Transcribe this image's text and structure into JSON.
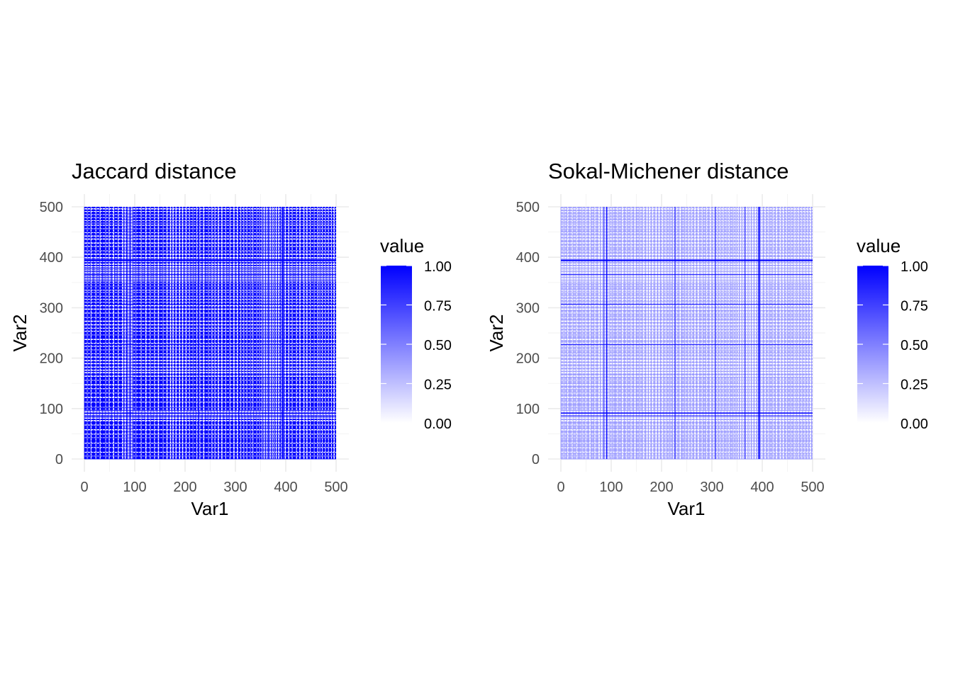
{
  "legend": {
    "title": "value",
    "ticks": [
      1.0,
      0.75,
      0.5,
      0.25,
      0.0
    ],
    "tick_labels": [
      "1.00",
      "0.75",
      "0.50",
      "0.25",
      "0.00"
    ],
    "low_color": "#ffffff",
    "high_color": "#0000ff",
    "range": [
      0,
      1
    ]
  },
  "chart_data": [
    {
      "type": "heatmap",
      "title": "Jaccard distance",
      "xlabel": "Var1",
      "ylabel": "Var2",
      "xlim": [
        0,
        500
      ],
      "ylim": [
        0,
        500
      ],
      "x_ticks": [
        0,
        100,
        200,
        300,
        400,
        500
      ],
      "y_ticks": [
        0,
        100,
        200,
        300,
        400,
        500
      ],
      "x_tick_labels": [
        "0",
        "100",
        "200",
        "300",
        "400",
        "500"
      ],
      "y_tick_labels": [
        "0",
        "100",
        "200",
        "300",
        "400",
        "500"
      ],
      "n": 500,
      "value_range": [
        0,
        1
      ],
      "dominant_value": 1.0,
      "low_value_indices": [
        5,
        12,
        22,
        30,
        41,
        48,
        57,
        66,
        75,
        80,
        84,
        87,
        90,
        92,
        95,
        101,
        112,
        121,
        130,
        138,
        146,
        155,
        163,
        170,
        175,
        181,
        188,
        194,
        201,
        208,
        215,
        222,
        228,
        236,
        245,
        252,
        258,
        265,
        272,
        280,
        288,
        296,
        303,
        310,
        316,
        322,
        329,
        334,
        341,
        347,
        352,
        356,
        360,
        364,
        368,
        372,
        376,
        380,
        385,
        390,
        394,
        398,
        405,
        412,
        420,
        427,
        435,
        441,
        448,
        455,
        462,
        467,
        472,
        478,
        484,
        490,
        495
      ],
      "high_bands": [
        85,
        90,
        91,
        226,
        306,
        365,
        392,
        393,
        394
      ],
      "grid": true,
      "legend_position": "right"
    },
    {
      "type": "heatmap",
      "title": "Sokal-Michener distance",
      "xlabel": "Var1",
      "ylabel": "Var2",
      "xlim": [
        0,
        500
      ],
      "ylim": [
        0,
        500
      ],
      "x_ticks": [
        0,
        100,
        200,
        300,
        400,
        500
      ],
      "y_ticks": [
        0,
        100,
        200,
        300,
        400,
        500
      ],
      "x_tick_labels": [
        "0",
        "100",
        "200",
        "300",
        "400",
        "500"
      ],
      "y_tick_labels": [
        "0",
        "100",
        "200",
        "300",
        "400",
        "500"
      ],
      "n": 500,
      "value_range": [
        0,
        1
      ],
      "dominant_value": 0.3,
      "low_value_indices": [
        5,
        12,
        22,
        30,
        41,
        48,
        57,
        66,
        75,
        80,
        84,
        87,
        90,
        92,
        95,
        101,
        112,
        121,
        130,
        138,
        146,
        155,
        163,
        170,
        175,
        181,
        188,
        194,
        201,
        208,
        215,
        222,
        228,
        236,
        245,
        252,
        258,
        265,
        272,
        280,
        288,
        296,
        303,
        310,
        316,
        322,
        329,
        334,
        341,
        347,
        352,
        356,
        360,
        364,
        368,
        372,
        376,
        380,
        385,
        390,
        394,
        398,
        405,
        412,
        420,
        427,
        435,
        441,
        448,
        455,
        462,
        467,
        472,
        478,
        484,
        490,
        495
      ],
      "high_bands": [
        85,
        90,
        91,
        226,
        306,
        365,
        392,
        393,
        394
      ],
      "grid": true,
      "legend_position": "right"
    }
  ]
}
